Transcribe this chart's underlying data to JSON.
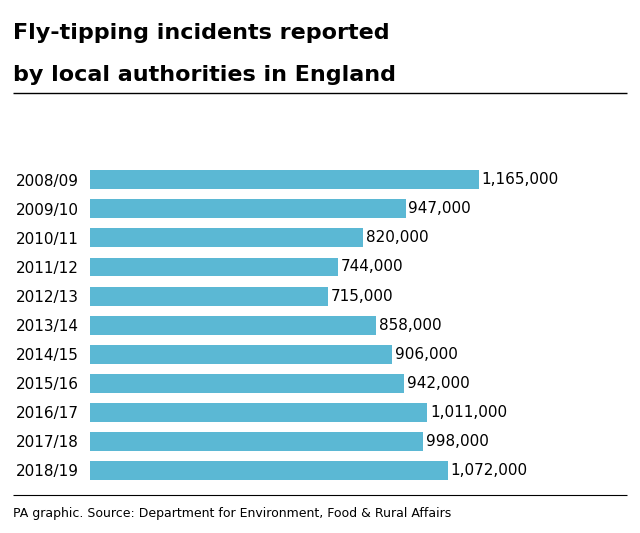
{
  "title_line1": "Fly-tipping incidents reported",
  "title_line2": "by local authorities in England",
  "categories": [
    "2008/09",
    "2009/10",
    "2010/11",
    "2011/12",
    "2012/13",
    "2013/14",
    "2014/15",
    "2015/16",
    "2016/17",
    "2017/18",
    "2018/19"
  ],
  "values": [
    1165000,
    947000,
    820000,
    744000,
    715000,
    858000,
    906000,
    942000,
    1011000,
    998000,
    1072000
  ],
  "labels": [
    "1,165,000",
    "947,000",
    "820,000",
    "744,000",
    "715,000",
    "858,000",
    "906,000",
    "942,000",
    "1,011,000",
    "998,000",
    "1,072,000"
  ],
  "bar_color": "#5BB8D4",
  "background_color": "#ffffff",
  "title_fontsize": 16,
  "label_fontsize": 11,
  "tick_fontsize": 11,
  "footer": "PA graphic. Source: Department for Environment, Food & Rural Affairs",
  "footer_fontsize": 9,
  "xlim_max": 1380000,
  "bar_height": 0.65
}
